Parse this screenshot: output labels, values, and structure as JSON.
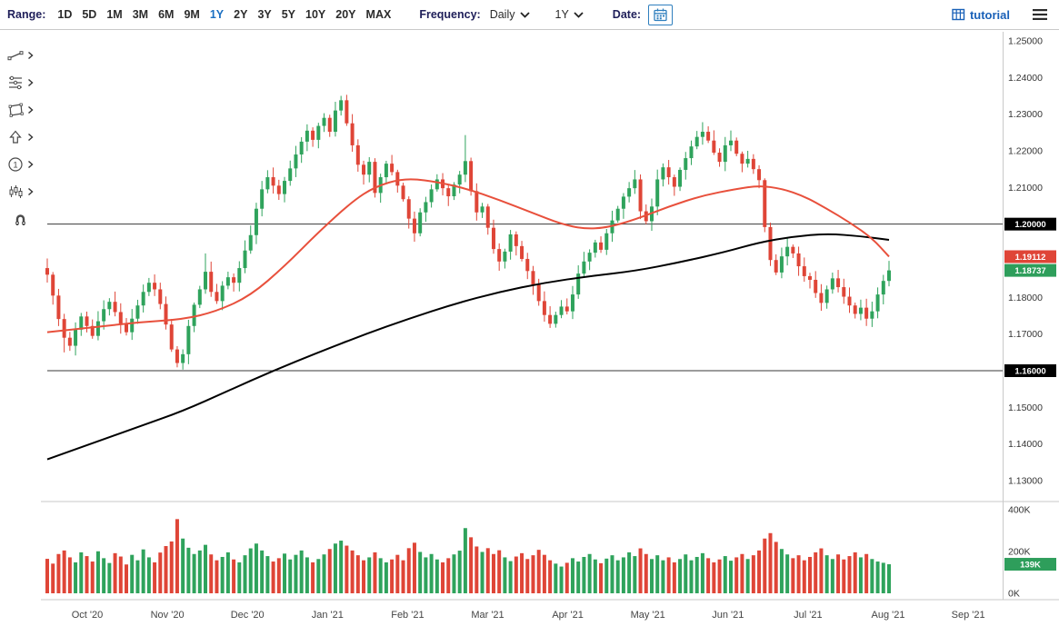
{
  "toolbar": {
    "range_label": "Range:",
    "range_options": [
      "1D",
      "5D",
      "1M",
      "3M",
      "6M",
      "9M",
      "1Y",
      "2Y",
      "3Y",
      "5Y",
      "10Y",
      "20Y",
      "MAX"
    ],
    "active_range": "1Y",
    "frequency_label": "Frequency:",
    "frequency_value": "Daily",
    "period_value": "1Y",
    "date_label": "Date:",
    "date_icon": "calendar-icon",
    "tutorial_label": "tutorial",
    "tutorial_icon": "grid-icon",
    "menu_icon": "hamburger-icon",
    "accent_blue": "#1b6fc2"
  },
  "sidebar": {
    "tools": [
      "trendline-tool",
      "levels-tool",
      "shapes-tool",
      "arrow-tool",
      "annotation-tool",
      "pattern-tool",
      "magnet-tool"
    ]
  },
  "chart_data": {
    "type": "candlestick",
    "x_axis": {
      "months": [
        "Oct '20",
        "Nov '20",
        "Dec '20",
        "Jan '21",
        "Feb '21",
        "Mar '21",
        "Apr '21",
        "May '21",
        "Jun '21",
        "Jul '21",
        "Aug '21",
        "Sep '21"
      ]
    },
    "y_axis": {
      "min": 1.13,
      "max": 1.25,
      "tick_values": [
        1.25,
        1.24,
        1.23,
        1.22,
        1.21,
        1.18,
        1.17,
        1.15,
        1.14,
        1.13
      ]
    },
    "horizontal_levels": [
      1.2,
      1.16
    ],
    "price_badges": [
      {
        "label": "1.20000",
        "value": 1.2,
        "color": "#000000"
      },
      {
        "label": "1.19112",
        "value": 1.19112,
        "color": "#df4537"
      },
      {
        "label": "1.18737",
        "value": 1.18737,
        "color": "#2e9e5b"
      },
      {
        "label": "1.16000",
        "value": 1.16,
        "color": "#000000"
      }
    ],
    "volume_axis": {
      "ticks": [
        {
          "label": "400K",
          "value": 400
        },
        {
          "label": "200K",
          "value": 200
        },
        {
          "label": "0K",
          "value": 0
        }
      ],
      "badge": {
        "label": "139K",
        "value": 139,
        "color": "#2e9e5b"
      }
    },
    "colors": {
      "up": "#2fa35c",
      "down": "#df4537",
      "ma_fast": "#e8503c",
      "ma_slow": "#000000"
    },
    "closes": [
      1.1862,
      1.1805,
      1.1741,
      1.169,
      1.1668,
      1.1712,
      1.1748,
      1.1722,
      1.1695,
      1.1735,
      1.1768,
      1.1788,
      1.176,
      1.1728,
      1.1705,
      1.1742,
      1.1778,
      1.1815,
      1.184,
      1.1822,
      1.1782,
      1.1726,
      1.1658,
      1.1621,
      1.1645,
      1.1722,
      1.178,
      1.1822,
      1.187,
      1.1815,
      1.179,
      1.1832,
      1.1855,
      1.184,
      1.188,
      1.1928,
      1.197,
      1.2042,
      1.2095,
      1.2128,
      1.2105,
      1.2082,
      1.2118,
      1.2152,
      1.219,
      1.2225,
      1.2255,
      1.223,
      1.2268,
      1.229,
      1.2252,
      1.231,
      1.2338,
      1.2275,
      1.2215,
      1.2162,
      1.2135,
      1.217,
      1.2085,
      1.2128,
      1.2165,
      1.2142,
      1.2105,
      1.2068,
      1.2015,
      1.1975,
      1.2032,
      1.206,
      1.2095,
      1.2122,
      1.2098,
      1.2076,
      1.2108,
      1.2135,
      1.2172,
      1.209,
      1.2032,
      1.2048,
      1.199,
      1.1932,
      1.1898,
      1.1925,
      1.1972,
      1.194,
      1.1905,
      1.1872,
      1.1835,
      1.179,
      1.1752,
      1.1728,
      1.1752,
      1.1775,
      1.1762,
      1.1808,
      1.1865,
      1.1898,
      1.1922,
      1.195,
      1.193,
      1.1975,
      1.201,
      1.2042,
      1.2075,
      1.2098,
      1.2122,
      1.2035,
      1.2008,
      1.2048,
      1.2122,
      1.2155,
      1.2128,
      1.2102,
      1.2148,
      1.218,
      1.2212,
      1.2238,
      1.2252,
      1.2228,
      1.2195,
      1.217,
      1.2215,
      1.2228,
      1.2192,
      1.2165,
      1.2178,
      1.215,
      1.212,
      1.1992,
      1.1902,
      1.1868,
      1.1912,
      1.1938,
      1.192,
      1.1885,
      1.1858,
      1.1848,
      1.1812,
      1.1785,
      1.1822,
      1.1852,
      1.1828,
      1.1802,
      1.1778,
      1.1755,
      1.1772,
      1.1742,
      1.1762,
      1.1808,
      1.1845,
      1.18737
    ],
    "volumes_k": [
      165,
      142,
      188,
      205,
      172,
      148,
      196,
      178,
      152,
      201,
      168,
      145,
      192,
      176,
      138,
      184,
      158,
      210,
      172,
      148,
      195,
      226,
      248,
      355,
      262,
      218,
      188,
      205,
      232,
      186,
      158,
      174,
      196,
      162,
      148,
      182,
      215,
      238,
      205,
      178,
      152,
      168,
      190,
      162,
      184,
      205,
      172,
      148,
      164,
      186,
      212,
      238,
      252,
      228,
      205,
      182,
      158,
      172,
      196,
      168,
      148,
      162,
      184,
      158,
      216,
      242,
      198,
      172,
      188,
      162,
      148,
      168,
      186,
      204,
      312,
      268,
      224,
      198,
      216,
      188,
      206,
      172,
      154,
      176,
      192,
      164,
      182,
      208,
      184,
      158,
      142,
      128,
      146,
      168,
      152,
      174,
      188,
      162,
      144,
      166,
      182,
      158,
      172,
      196,
      178,
      215,
      188,
      164,
      182,
      158,
      172,
      148,
      164,
      186,
      158,
      174,
      192,
      168,
      148,
      162,
      178,
      156,
      172,
      188,
      164,
      182,
      205,
      262,
      288,
      246,
      212,
      186,
      168,
      182,
      158,
      174,
      196,
      215,
      182,
      164,
      186,
      162,
      178,
      196,
      172,
      188,
      164,
      152,
      146,
      139
    ],
    "wick_overrides": {
      "3": {
        "low": 1.165
      },
      "24": {
        "low": 1.1603
      },
      "28": {
        "high": 1.192
      },
      "52": {
        "high": 1.235
      },
      "65": {
        "low": 1.1952
      },
      "74": {
        "high": 1.2243
      },
      "127": {
        "high": 1.2125
      }
    },
    "ma_fast": {
      "color": "#e8503c",
      "points": [
        [
          0,
          1.1705
        ],
        [
          8,
          1.1718
        ],
        [
          16,
          1.1732
        ],
        [
          24,
          1.174
        ],
        [
          30,
          1.1762
        ],
        [
          36,
          1.1805
        ],
        [
          42,
          1.1885
        ],
        [
          48,
          1.1978
        ],
        [
          54,
          1.2062
        ],
        [
          58,
          1.2102
        ],
        [
          63,
          1.2125
        ],
        [
          68,
          1.2118
        ],
        [
          74,
          1.2098
        ],
        [
          80,
          1.2066
        ],
        [
          86,
          1.203
        ],
        [
          91,
          1.2
        ],
        [
          95,
          1.1987
        ],
        [
          99,
          1.199
        ],
        [
          104,
          1.2012
        ],
        [
          110,
          1.2048
        ],
        [
          116,
          1.2078
        ],
        [
          122,
          1.2096
        ],
        [
          126,
          1.2105
        ],
        [
          130,
          1.2097
        ],
        [
          134,
          1.2076
        ],
        [
          138,
          1.2042
        ],
        [
          142,
          1.2005
        ],
        [
          146,
          1.1962
        ],
        [
          149,
          1.19112
        ]
      ]
    },
    "ma_slow": {
      "color": "#000000",
      "points": [
        [
          0,
          1.1358
        ],
        [
          8,
          1.1402
        ],
        [
          16,
          1.1446
        ],
        [
          24,
          1.149
        ],
        [
          32,
          1.1545
        ],
        [
          40,
          1.16
        ],
        [
          48,
          1.165
        ],
        [
          56,
          1.1698
        ],
        [
          64,
          1.1742
        ],
        [
          72,
          1.1782
        ],
        [
          80,
          1.1815
        ],
        [
          88,
          1.184
        ],
        [
          96,
          1.1858
        ],
        [
          104,
          1.1872
        ],
        [
          112,
          1.1896
        ],
        [
          120,
          1.1924
        ],
        [
          126,
          1.195
        ],
        [
          132,
          1.1966
        ],
        [
          138,
          1.1974
        ],
        [
          144,
          1.1967
        ],
        [
          149,
          1.1957
        ]
      ]
    }
  }
}
